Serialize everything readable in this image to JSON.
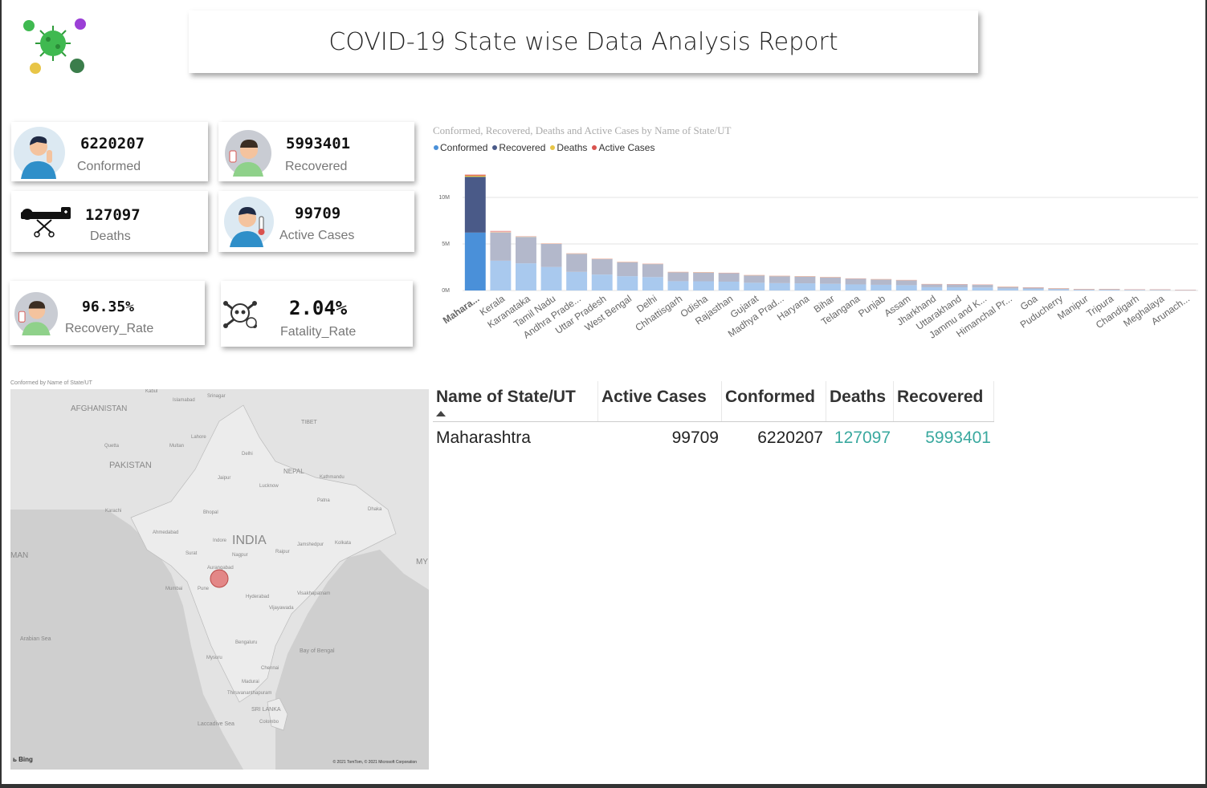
{
  "report_title": "COVID-19 State wise Data Analysis Report",
  "cards": {
    "confirmed": {
      "value": "6220207",
      "label": "Conformed"
    },
    "recovered": {
      "value": "5993401",
      "label": "Recovered"
    },
    "deaths": {
      "value": "127097",
      "label": "Deaths"
    },
    "active": {
      "value": "99709",
      "label": "Active Cases"
    },
    "recovery_rate": {
      "value": "96.35%",
      "label": "Recovery_Rate"
    },
    "fatality_rate": {
      "value": "2.04%",
      "label": "Fatality_Rate"
    }
  },
  "chart_data": {
    "type": "bar",
    "stacked": true,
    "title": "Conformed, Recovered, Deaths and Active Cases by Name of State/UT",
    "legend_position": "top-left",
    "ylim": [
      0,
      12500000
    ],
    "yticks": [
      {
        "v": 0,
        "label": "0M"
      },
      {
        "v": 5000000,
        "label": "5M"
      },
      {
        "v": 10000000,
        "label": "10M"
      }
    ],
    "grid": true,
    "categories": [
      "Mahara...",
      "Kerala",
      "Karanataka",
      "Tamil Nadu",
      "Andhra Prade...",
      "Uttar Pradesh",
      "West Bengal",
      "Delhi",
      "Chhattisgarh",
      "Odisha",
      "Rajasthan",
      "Gujarat",
      "Madhya Prad...",
      "Haryana",
      "Bihar",
      "Telangana",
      "Punjab",
      "Assam",
      "Jharkhand",
      "Uttarakhand",
      "Jammu and K...",
      "Himanchal Pr...",
      "Goa",
      "Puducherry",
      "Manipur",
      "Tripura",
      "Chandigarh",
      "Meghalaya",
      "Arunach..."
    ],
    "series": [
      {
        "name": "Conformed",
        "color": "#4a90d9",
        "highlight_color": "#a9c9ee",
        "values": [
          6220207,
          3200000,
          2920000,
          2530000,
          2000000,
          1710000,
          1540000,
          1440000,
          1000000,
          990000,
          950000,
          830000,
          790000,
          770000,
          720000,
          650000,
          610000,
          570000,
          350000,
          345000,
          325000,
          205000,
          170000,
          120000,
          80000,
          80000,
          62000,
          60000,
          40000
        ]
      },
      {
        "name": "Recovered",
        "color": "#4a5a88",
        "highlight_color": "#b3b8cb",
        "values": [
          5993401,
          3050000,
          2840000,
          2480000,
          1960000,
          1680000,
          1510000,
          1410000,
          980000,
          960000,
          940000,
          810000,
          770000,
          750000,
          710000,
          640000,
          590000,
          550000,
          340000,
          330000,
          310000,
          195000,
          165000,
          115000,
          75000,
          78000,
          60000,
          55000,
          38000
        ]
      },
      {
        "name": "Deaths",
        "color": "#e8c547",
        "highlight_color": "#f4e2a3",
        "values": [
          127097,
          16000,
          36000,
          33000,
          13000,
          22000,
          18000,
          25000,
          13000,
          5000,
          9000,
          10000,
          10000,
          9000,
          9000,
          3800,
          16000,
          5000,
          5000,
          7000,
          4000,
          3500,
          3000,
          1800,
          1200,
          800,
          800,
          1000,
          200
        ]
      },
      {
        "name": "Active Cases",
        "color": "#d9534f",
        "highlight_color": "#eca7a5",
        "values": [
          99709,
          140000,
          40000,
          20000,
          20000,
          10000,
          12000,
          5000,
          8000,
          20000,
          6000,
          10000,
          8000,
          6000,
          6000,
          10000,
          10000,
          10000,
          5000,
          8000,
          10000,
          6000,
          2000,
          3000,
          4000,
          1000,
          1000,
          4000,
          2000
        ]
      }
    ],
    "highlighted_index": 0
  },
  "map": {
    "title": "Conformed by Name of State/UT",
    "labels": [
      {
        "text": "AFGHANISTAN",
        "size": 10
      },
      {
        "text": "PAKISTAN",
        "size": 11
      },
      {
        "text": "INDIA",
        "size": 16
      },
      {
        "text": "NEPAL",
        "size": 8
      },
      {
        "text": "TIBET",
        "size": 7
      },
      {
        "text": "Arabian Sea",
        "size": 7
      },
      {
        "text": "Laccadive Sea",
        "size": 7
      },
      {
        "text": "SRI LANKA",
        "size": 7
      },
      {
        "text": "Bay of Bengal",
        "size": 7
      },
      {
        "text": "Kabul",
        "size": 6
      },
      {
        "text": "Srinagar",
        "size": 6
      },
      {
        "text": "Islamabad",
        "size": 6
      },
      {
        "text": "Lahore",
        "size": 6
      },
      {
        "text": "Karachi",
        "size": 6
      },
      {
        "text": "Delhi",
        "size": 6
      },
      {
        "text": "Jaipur",
        "size": 6
      },
      {
        "text": "Ahmedabad",
        "size": 6
      },
      {
        "text": "Mumbai",
        "size": 6
      },
      {
        "text": "Pune",
        "size": 6
      },
      {
        "text": "Hyderabad",
        "size": 6
      },
      {
        "text": "Bengaluru",
        "size": 6
      },
      {
        "text": "Chennai",
        "size": 6
      },
      {
        "text": "Kolkata",
        "size": 6
      },
      {
        "text": "Nagpur",
        "size": 6
      },
      {
        "text": "Lucknow",
        "size": 6
      },
      {
        "text": "Patna",
        "size": 6
      },
      {
        "text": "Kathmandu",
        "size": 6
      },
      {
        "text": "Dhaka",
        "size": 6
      },
      {
        "text": "Bhopal",
        "size": 6
      },
      {
        "text": "Surat",
        "size": 6
      },
      {
        "text": "Aurangabad",
        "size": 6
      },
      {
        "text": "Visakhapatnam",
        "size": 6
      },
      {
        "text": "Madurai",
        "size": 6
      },
      {
        "text": "Colombo",
        "size": 6
      },
      {
        "text": "Thiruvananthapuram",
        "size": 6
      },
      {
        "text": "Jamshedpur",
        "size": 6
      },
      {
        "text": "Quetta",
        "size": 6
      },
      {
        "text": "Multan",
        "size": 6
      },
      {
        "text": "Indore",
        "size": 6
      },
      {
        "text": "Vijayawada",
        "size": 6
      },
      {
        "text": "Mysuru",
        "size": 6
      },
      {
        "text": "Raipur",
        "size": 6
      },
      {
        "text": "MY",
        "size": 10
      },
      {
        "text": "MAN",
        "size": 10
      }
    ],
    "bubble": {
      "state": "Maharashtra",
      "color": "#e06666"
    },
    "bing_label": "Bing",
    "copyright": "© 2021 TomTom, © 2021 Microsoft Corporation"
  },
  "table": {
    "headers": [
      "Name of State/UT",
      "Active Cases",
      "Conformed",
      "Deaths",
      "Recovered"
    ],
    "rows": [
      {
        "name": "Maharashtra",
        "active": "99709",
        "confirmed": "6220207",
        "deaths": "127097",
        "recovered": "5993401"
      }
    ],
    "highlight_color": "#3aa99f"
  }
}
